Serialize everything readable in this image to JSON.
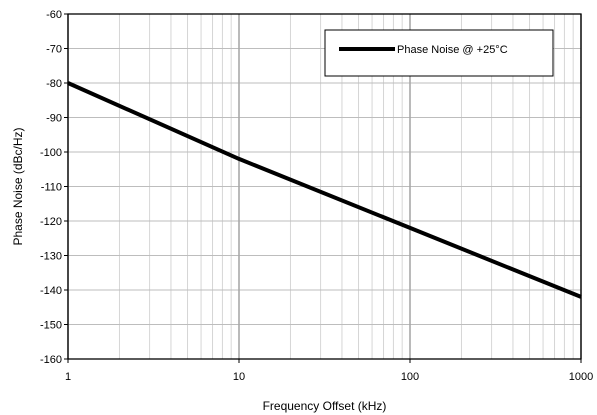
{
  "chart_data": {
    "type": "line",
    "xlabel": "Frequency Offset (kHz)",
    "ylabel": "Phase Noise (dBc/Hz)",
    "xscale": "log",
    "xlim": [
      1,
      1000
    ],
    "ylim": [
      -160,
      -60
    ],
    "x_ticks": [
      1,
      10,
      100,
      1000
    ],
    "x_tick_labels": [
      "1",
      "10",
      "100",
      "1000"
    ],
    "y_ticks": [
      -60,
      -70,
      -80,
      -90,
      -100,
      -110,
      -120,
      -130,
      -140,
      -150,
      -160
    ],
    "y_tick_labels": [
      "-60",
      "-70",
      "-80",
      "-90",
      "-100",
      "-110",
      "-120",
      "-130",
      "-140",
      "-150",
      "-160"
    ],
    "grid": true,
    "legend_position": "top-right",
    "series": [
      {
        "name": "Phase Noise @ +25°C",
        "color": "#000000",
        "x": [
          1,
          10,
          100,
          1000
        ],
        "y": [
          -80,
          -102,
          -122,
          -142
        ]
      }
    ]
  }
}
